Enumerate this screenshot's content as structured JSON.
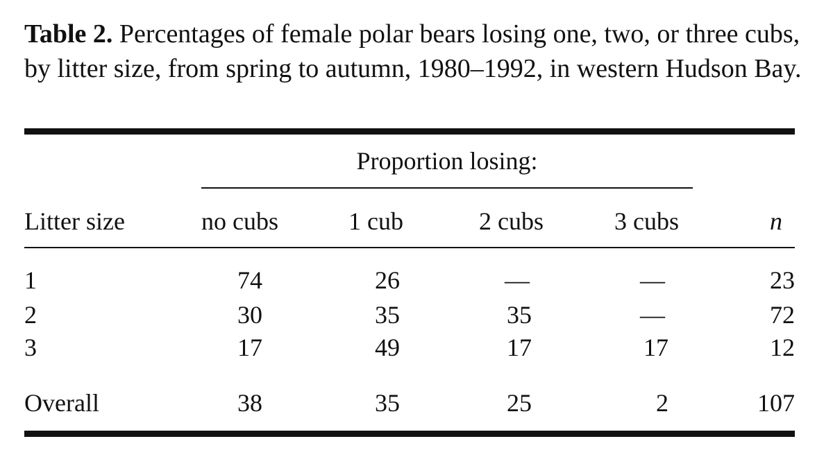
{
  "caption": {
    "label": "Table 2.",
    "text": " Percentages of female polar bears losing one, two, or three cubs, by litter size, from spring to autumn, 1980–1992, in western Hudson Bay."
  },
  "table": {
    "spanner": "Proportion losing:",
    "headers": [
      "Litter size",
      "no cubs",
      "1 cub",
      "2 cubs",
      "3 cubs",
      "n"
    ],
    "rows": [
      [
        "1",
        "74",
        "26",
        "—",
        "—",
        "23"
      ],
      [
        "2",
        "30",
        "35",
        "35",
        "—",
        "72"
      ],
      [
        "3",
        "17",
        "49",
        "17",
        "17",
        "12"
      ]
    ],
    "overall": [
      "Overall",
      "38",
      "35",
      "25",
      "2",
      "107"
    ]
  }
}
